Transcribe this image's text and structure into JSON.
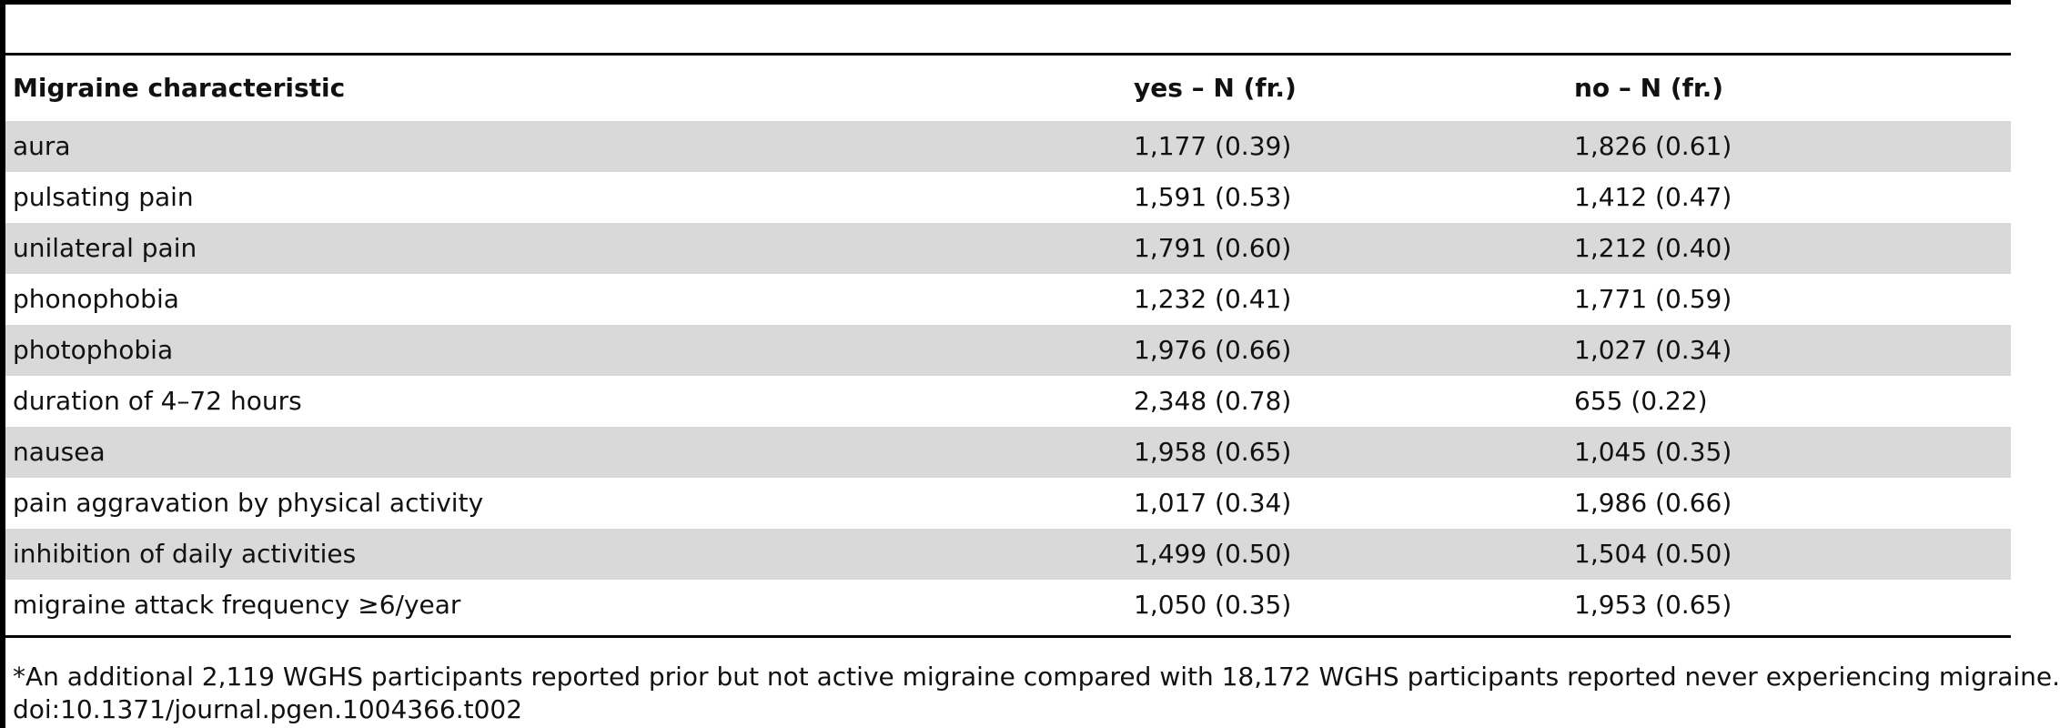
{
  "table": {
    "headers": [
      "Migraine characteristic",
      "yes – N (fr.)",
      "no – N (fr.)"
    ],
    "rows": [
      [
        "aura",
        "1,177 (0.39)",
        "1,826 (0.61)"
      ],
      [
        "pulsating pain",
        "1,591 (0.53)",
        "1,412 (0.47)"
      ],
      [
        "unilateral pain",
        "1,791 (0.60)",
        "1,212 (0.40)"
      ],
      [
        "phonophobia",
        "1,232 (0.41)",
        "1,771 (0.59)"
      ],
      [
        "photophobia",
        "1,976 (0.66)",
        "1,027 (0.34)"
      ],
      [
        "duration of 4–72 hours",
        "2,348 (0.78)",
        "655 (0.22)"
      ],
      [
        "nausea",
        "1,958 (0.65)",
        "1,045 (0.35)"
      ],
      [
        "pain aggravation by physical activity",
        "1,017 (0.34)",
        "1,986 (0.66)"
      ],
      [
        "inhibition of daily activities",
        "1,499 (0.50)",
        "1,504 (0.50)"
      ],
      [
        "migraine attack frequency ≥6/year",
        "1,050 (0.35)",
        "1,953 (0.65)"
      ]
    ],
    "shaded_row_color": "#d9d9d9"
  },
  "footnote": {
    "note": "*An additional 2,119 WGHS participants reported prior but not active migraine compared with 18,172 WGHS participants reported never experiencing migraine.",
    "doi": "doi:10.1371/journal.pgen.1004366.t002"
  }
}
